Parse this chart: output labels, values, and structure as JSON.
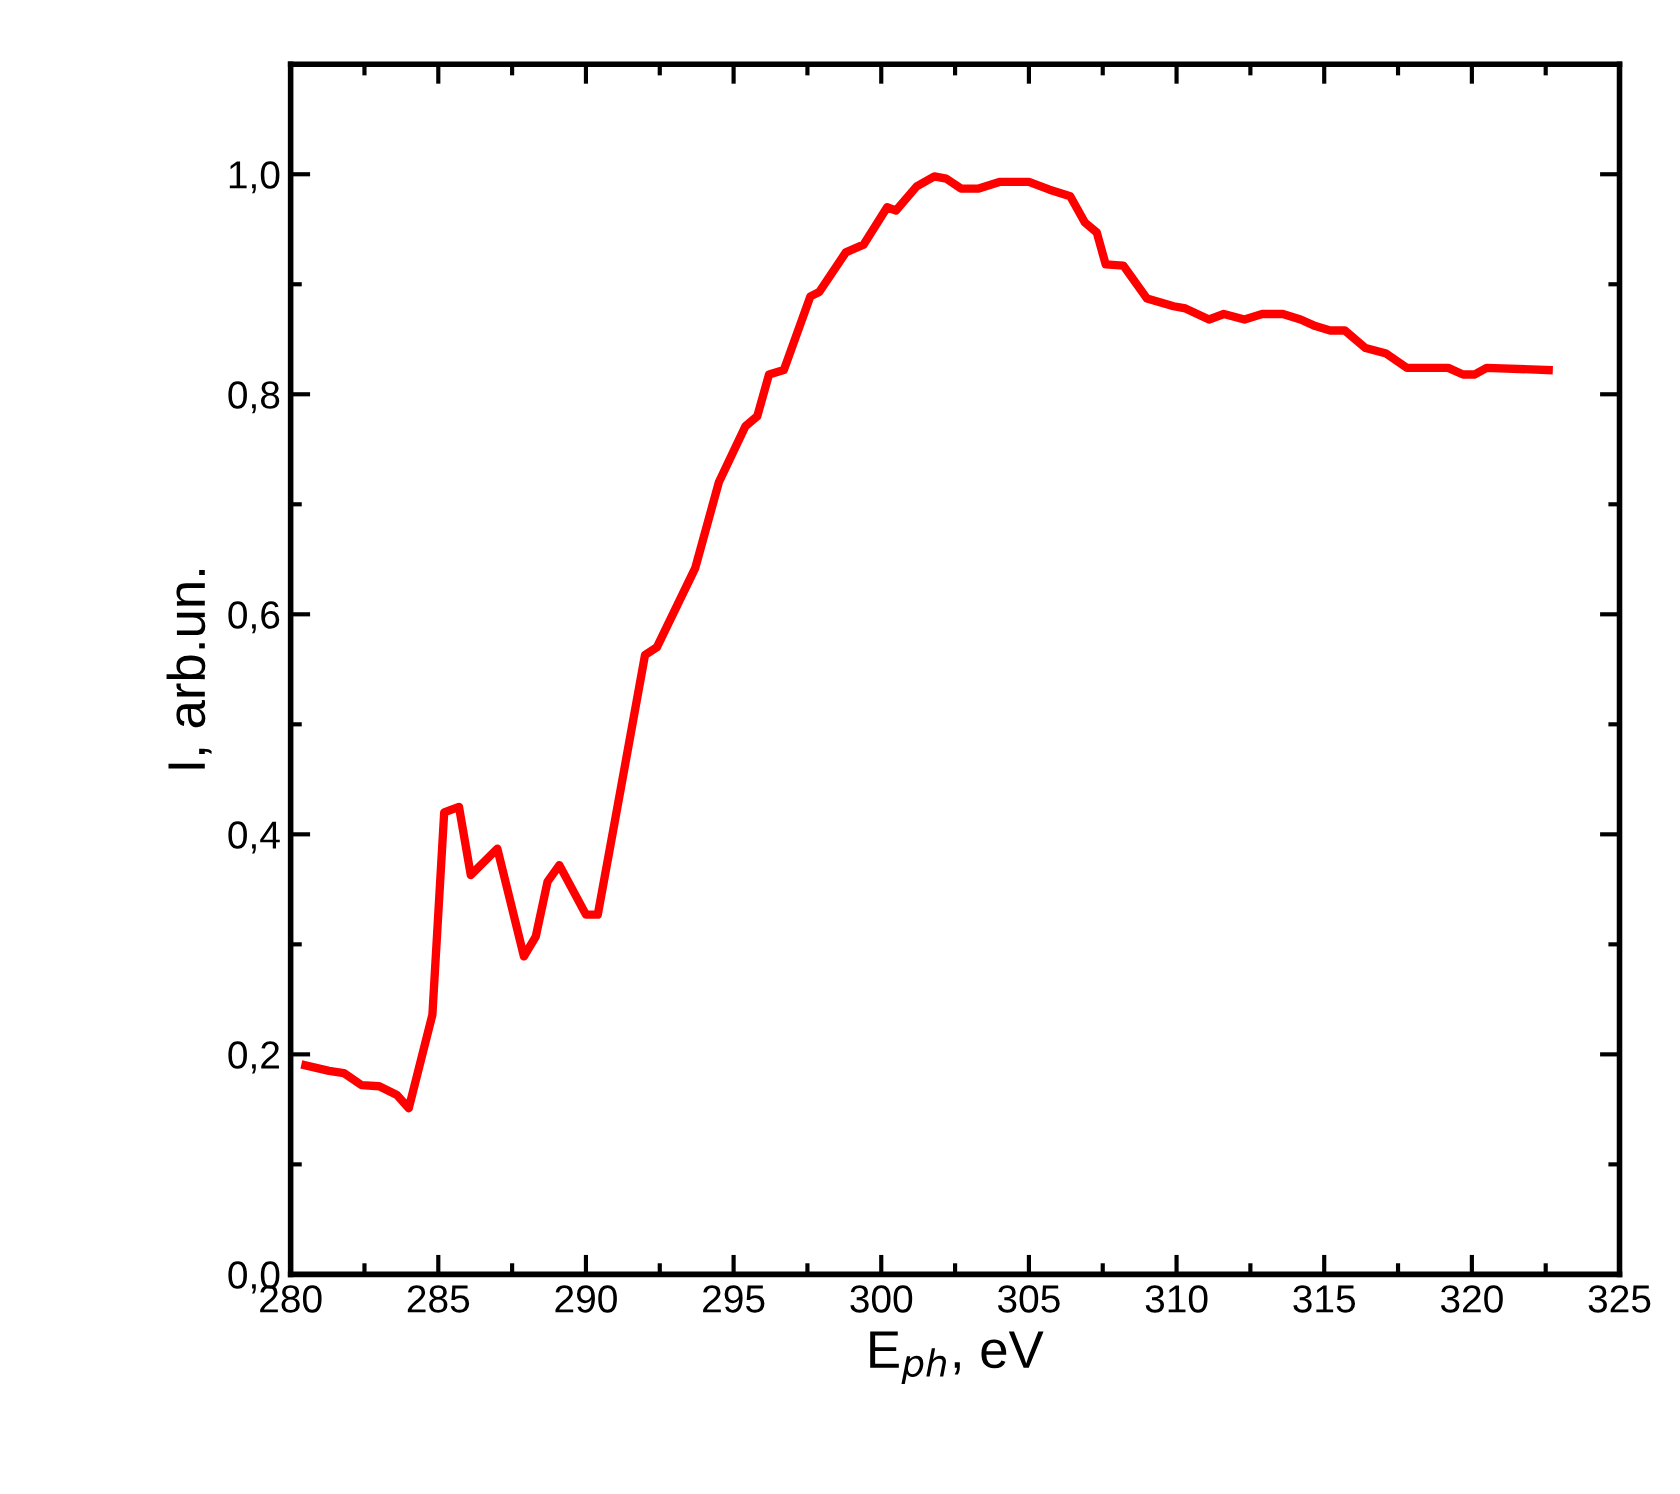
{
  "chart_data": {
    "type": "line",
    "xlabel": "E$_{ph}$, eV",
    "ylabel": "I, arb.un.",
    "xlim": [
      280,
      325
    ],
    "ylim": [
      0,
      1.1
    ],
    "xticks": [
      280,
      {
        "value": 282.5,
        "label": null
      },
      285,
      {
        "value": 287.5,
        "label": null
      },
      290,
      {
        "value": 292.5,
        "label": null
      },
      295,
      {
        "value": 297.5,
        "label": null
      },
      300,
      {
        "value": 302.5,
        "label": null
      },
      305,
      {
        "value": 307.5,
        "label": null
      },
      310,
      {
        "value": 312.5,
        "label": null
      },
      315,
      {
        "value": 317.5,
        "label": null
      },
      320,
      {
        "value": 322.5,
        "label": null
      },
      325
    ],
    "yticks": [
      {
        "value": 0,
        "label": "0,0"
      },
      {
        "value": 0.1,
        "label": null
      },
      {
        "value": 0.2,
        "label": "0,2"
      },
      {
        "value": 0.3,
        "label": null
      },
      {
        "value": 0.4,
        "label": "0,4"
      },
      {
        "value": 0.5,
        "label": null
      },
      {
        "value": 0.6,
        "label": "0,6"
      },
      {
        "value": 0.7,
        "label": null
      },
      {
        "value": 0.8,
        "label": "0,8"
      },
      {
        "value": 0.9,
        "label": null
      },
      {
        "value": 1.0,
        "label": "1,0"
      }
    ],
    "grid": false,
    "marker": "none",
    "line_style": "solid",
    "series": [
      {
        "color": "#ff0000",
        "x": [
          280.5,
          281.3,
          281.8,
          282.4,
          283.0,
          283.6,
          284.0,
          284.8,
          285.2,
          285.7,
          286.1,
          287.0,
          287.9,
          288.3,
          288.7,
          289.1,
          290.0,
          290.4,
          291.0,
          292.0,
          292.4,
          293.7,
          294.5,
          295.4,
          295.8,
          296.2,
          296.7,
          297.6,
          297.9,
          298.8,
          299.4,
          300.2,
          300.5,
          301.2,
          301.8,
          302.2,
          302.7,
          303.3,
          304.0,
          305.0,
          305.7,
          306.4,
          306.9,
          307.3,
          307.6,
          308.2,
          309.0,
          309.9,
          310.3,
          311.1,
          311.6,
          312.3,
          312.9,
          313.6,
          314.2,
          314.7,
          315.2,
          315.7,
          316.4,
          317.1,
          317.8,
          319.2,
          319.7,
          320.1,
          320.5,
          322.6
        ],
        "values": [
          0.19,
          0.185,
          0.183,
          0.172,
          0.171,
          0.163,
          0.151,
          0.236,
          0.42,
          0.425,
          0.363,
          0.387,
          0.289,
          0.307,
          0.357,
          0.372,
          0.327,
          0.327,
          0.415,
          0.563,
          0.57,
          0.642,
          0.72,
          0.771,
          0.78,
          0.818,
          0.822,
          0.889,
          0.893,
          0.929,
          0.936,
          0.97,
          0.967,
          0.989,
          0.998,
          0.996,
          0.987,
          0.987,
          0.993,
          0.993,
          0.986,
          0.98,
          0.956,
          0.947,
          0.918,
          0.917,
          0.887,
          0.88,
          0.878,
          0.868,
          0.873,
          0.868,
          0.873,
          0.873,
          0.868,
          0.862,
          0.858,
          0.858,
          0.842,
          0.837,
          0.824,
          0.824,
          0.818,
          0.818,
          0.824,
          0.822
        ]
      }
    ]
  }
}
